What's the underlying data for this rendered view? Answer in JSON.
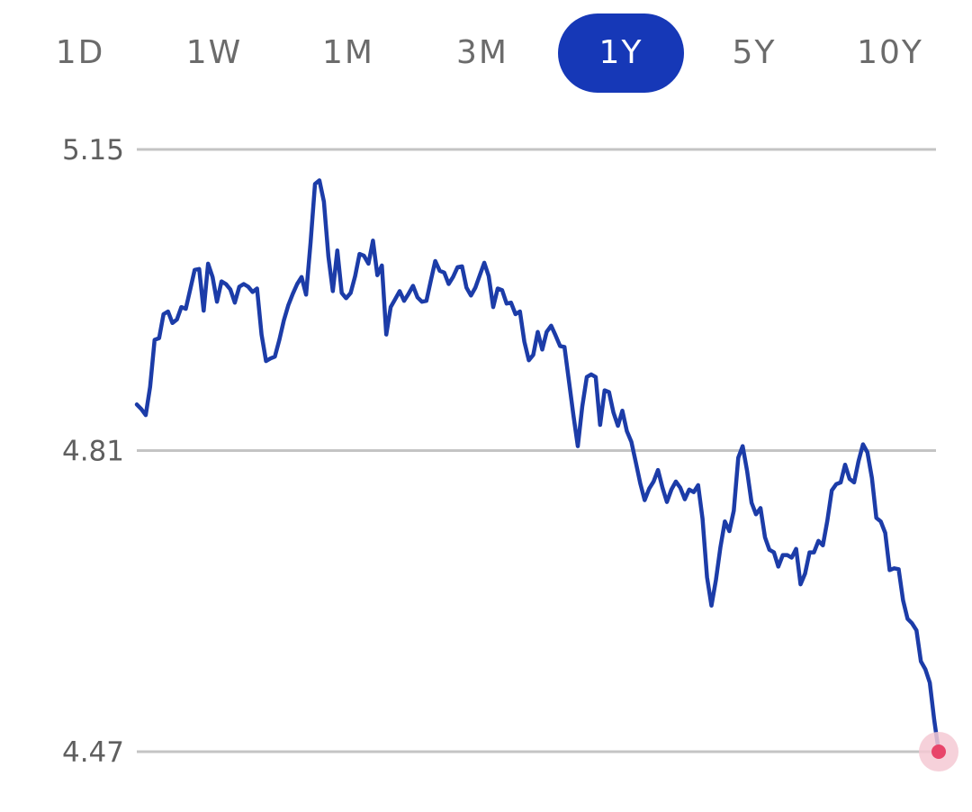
{
  "tabs": [
    {
      "label": "1D",
      "active": false
    },
    {
      "label": "1W",
      "active": false
    },
    {
      "label": "1M",
      "active": false
    },
    {
      "label": "3M",
      "active": false
    },
    {
      "label": "1Y",
      "active": true
    },
    {
      "label": "5Y",
      "active": false
    },
    {
      "label": "10Y",
      "active": false
    }
  ],
  "colors": {
    "accent": "#1638b7",
    "line": "#1c3ca8",
    "grid": "#c4c4c4",
    "tab_text": "#6b6b6b",
    "axis_text": "#5f5f5f",
    "end_marker": "#e8456a",
    "end_marker_halo": "#f5c9d3"
  },
  "chart_data": {
    "type": "line",
    "period": "1Y",
    "y_ticks": [
      "5.15",
      "4.81",
      "4.47"
    ],
    "ylim": [
      4.47,
      5.15
    ],
    "grid": true,
    "series": [
      {
        "values": [
          4.862,
          4.857,
          4.85,
          4.882,
          4.935,
          4.937,
          4.964,
          4.967,
          4.954,
          4.958,
          4.972,
          4.97,
          4.992,
          5.014,
          5.015,
          4.968,
          5.021,
          5.006,
          4.978,
          5.001,
          4.998,
          4.992,
          4.977,
          4.995,
          4.998,
          4.995,
          4.989,
          4.993,
          4.941,
          4.911,
          4.914,
          4.916,
          4.935,
          4.957,
          4.974,
          4.987,
          4.998,
          5.006,
          4.986,
          5.045,
          5.111,
          5.115,
          5.091,
          5.029,
          4.99,
          5.036,
          4.988,
          4.982,
          4.988,
          5.007,
          5.032,
          5.03,
          5.021,
          5.047,
          5.008,
          5.019,
          4.941,
          4.972,
          4.981,
          4.99,
          4.979,
          4.987,
          4.996,
          4.983,
          4.978,
          4.979,
          5.002,
          5.024,
          5.013,
          5.011,
          4.998,
          5.006,
          5.017,
          5.018,
          4.994,
          4.985,
          4.994,
          5.008,
          5.022,
          5.007,
          4.972,
          4.993,
          4.991,
          4.976,
          4.977,
          4.964,
          4.967,
          4.933,
          4.912,
          4.918,
          4.944,
          4.924,
          4.944,
          4.951,
          4.94,
          4.928,
          4.927,
          4.889,
          4.85,
          4.815,
          4.86,
          4.893,
          4.896,
          4.893,
          4.839,
          4.878,
          4.876,
          4.853,
          4.838,
          4.855,
          4.832,
          4.82,
          4.797,
          4.773,
          4.754,
          4.767,
          4.775,
          4.788,
          4.768,
          4.752,
          4.766,
          4.775,
          4.768,
          4.755,
          4.766,
          4.763,
          4.771,
          4.733,
          4.667,
          4.635,
          4.664,
          4.701,
          4.73,
          4.719,
          4.742,
          4.802,
          4.815,
          4.787,
          4.751,
          4.738,
          4.745,
          4.712,
          4.698,
          4.695,
          4.679,
          4.692,
          4.692,
          4.689,
          4.699,
          4.659,
          4.671,
          4.695,
          4.695,
          4.708,
          4.703,
          4.731,
          4.765,
          4.772,
          4.774,
          4.794,
          4.778,
          4.774,
          4.798,
          4.817,
          4.808,
          4.779,
          4.734,
          4.73,
          4.717,
          4.675,
          4.677,
          4.676,
          4.641,
          4.62,
          4.615,
          4.607,
          4.572,
          4.563,
          4.548,
          4.506,
          4.47
        ]
      }
    ]
  }
}
